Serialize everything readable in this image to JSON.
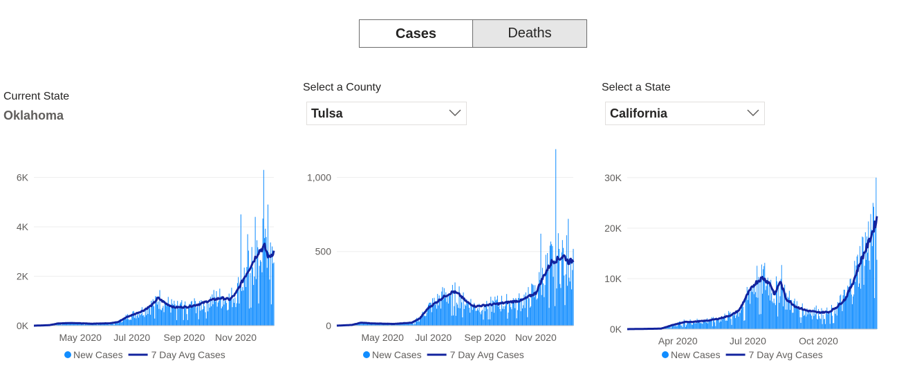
{
  "toggle": {
    "cases_label": "Cases",
    "deaths_label": "Deaths",
    "active": "Cases"
  },
  "left": {
    "label": "Current State",
    "value": "Oklahoma"
  },
  "middle": {
    "label": "Select a County",
    "selected": "Tulsa"
  },
  "right": {
    "label": "Select a State",
    "selected": "California"
  },
  "colors": {
    "bars": "#118dff",
    "line": "#12239e",
    "grid": "#eeeeee"
  },
  "icons": {
    "dropdown": "chevron-down-icon"
  },
  "chart_data": [
    {
      "type": "bar",
      "name": "Oklahoma",
      "ylim": [
        0,
        6600
      ],
      "yticks": [
        0,
        2000,
        4000,
        6000
      ],
      "ytick_labels": [
        "0K",
        "2K",
        "4K",
        "6K"
      ],
      "x_start": "2020-03-07",
      "x_end": "2020-12-16",
      "xticks": [
        "2020-05-01",
        "2020-07-01",
        "2020-09-01",
        "2020-11-01"
      ],
      "xtick_labels": [
        "May 2020",
        "Jul 2020",
        "Sep 2020",
        "Nov 2020"
      ],
      "avg_points": [
        [
          "2020-03-07",
          0
        ],
        [
          "2020-03-25",
          20
        ],
        [
          "2020-04-05",
          90
        ],
        [
          "2020-04-20",
          110
        ],
        [
          "2020-05-15",
          80
        ],
        [
          "2020-06-05",
          100
        ],
        [
          "2020-06-15",
          150
        ],
        [
          "2020-06-25",
          350
        ],
        [
          "2020-07-05",
          480
        ],
        [
          "2020-07-15",
          620
        ],
        [
          "2020-07-25",
          840
        ],
        [
          "2020-08-01",
          1120
        ],
        [
          "2020-08-10",
          900
        ],
        [
          "2020-08-20",
          740
        ],
        [
          "2020-09-05",
          760
        ],
        [
          "2020-09-20",
          880
        ],
        [
          "2020-10-01",
          1020
        ],
        [
          "2020-10-15",
          1120
        ],
        [
          "2020-10-25",
          1060
        ],
        [
          "2020-11-01",
          1300
        ],
        [
          "2020-11-10",
          1880
        ],
        [
          "2020-11-20",
          2500
        ],
        [
          "2020-11-28",
          3000
        ],
        [
          "2020-12-05",
          3200
        ],
        [
          "2020-12-10",
          2750
        ],
        [
          "2020-12-16",
          3000
        ]
      ],
      "spikes": [
        [
          "2020-11-07",
          4500
        ],
        [
          "2020-11-15",
          3700
        ],
        [
          "2020-11-24",
          4400
        ],
        [
          "2020-12-04",
          6300
        ],
        [
          "2020-12-09",
          4900
        ]
      ],
      "legend": [
        "New Cases",
        "7 Day Avg Cases"
      ]
    },
    {
      "type": "bar",
      "name": "Tulsa",
      "ylim": [
        0,
        1100
      ],
      "yticks": [
        0,
        500,
        1000
      ],
      "ytick_labels": [
        "0",
        "500",
        "1,000"
      ],
      "x_start": "2020-03-07",
      "x_end": "2020-12-16",
      "xticks": [
        "2020-05-01",
        "2020-07-01",
        "2020-09-01",
        "2020-11-01"
      ],
      "xtick_labels": [
        "May 2020",
        "Jul 2020",
        "Sep 2020",
        "Nov 2020"
      ],
      "avg_points": [
        [
          "2020-03-07",
          0
        ],
        [
          "2020-03-25",
          5
        ],
        [
          "2020-04-05",
          20
        ],
        [
          "2020-04-20",
          15
        ],
        [
          "2020-05-15",
          12
        ],
        [
          "2020-06-05",
          20
        ],
        [
          "2020-06-15",
          50
        ],
        [
          "2020-06-25",
          120
        ],
        [
          "2020-07-05",
          160
        ],
        [
          "2020-07-15",
          200
        ],
        [
          "2020-07-25",
          230
        ],
        [
          "2020-08-01",
          210
        ],
        [
          "2020-08-10",
          160
        ],
        [
          "2020-08-20",
          130
        ],
        [
          "2020-09-05",
          140
        ],
        [
          "2020-09-20",
          150
        ],
        [
          "2020-10-01",
          160
        ],
        [
          "2020-10-15",
          170
        ],
        [
          "2020-10-25",
          200
        ],
        [
          "2020-11-01",
          220
        ],
        [
          "2020-11-10",
          330
        ],
        [
          "2020-11-20",
          430
        ],
        [
          "2020-11-28",
          450
        ],
        [
          "2020-12-05",
          470
        ],
        [
          "2020-12-10",
          430
        ],
        [
          "2020-12-16",
          440
        ]
      ],
      "spikes": [
        [
          "2020-11-07",
          620
        ],
        [
          "2020-11-25",
          1190
        ],
        [
          "2020-12-10",
          720
        ]
      ],
      "legend": [
        "New Cases",
        "7 Day Avg Cases"
      ]
    },
    {
      "type": "bar",
      "name": "California",
      "ylim": [
        0,
        33000
      ],
      "yticks": [
        0,
        10000,
        20000,
        30000
      ],
      "ytick_labels": [
        "0K",
        "10K",
        "20K",
        "30K"
      ],
      "x_start": "2020-01-26",
      "x_end": "2020-12-16",
      "xticks": [
        "2020-04-01",
        "2020-07-01",
        "2020-10-01"
      ],
      "xtick_labels": [
        "Apr 2020",
        "Jul 2020",
        "Oct 2020"
      ],
      "avg_points": [
        [
          "2020-01-26",
          0
        ],
        [
          "2020-03-10",
          100
        ],
        [
          "2020-03-25",
          800
        ],
        [
          "2020-04-10",
          1400
        ],
        [
          "2020-04-25",
          1500
        ],
        [
          "2020-05-10",
          1700
        ],
        [
          "2020-05-25",
          2100
        ],
        [
          "2020-06-10",
          2800
        ],
        [
          "2020-06-20",
          3800
        ],
        [
          "2020-07-01",
          7000
        ],
        [
          "2020-07-10",
          9000
        ],
        [
          "2020-07-20",
          10200
        ],
        [
          "2020-07-30",
          9000
        ],
        [
          "2020-08-05",
          6800
        ],
        [
          "2020-08-12",
          9500
        ],
        [
          "2020-08-20",
          6000
        ],
        [
          "2020-09-01",
          4500
        ],
        [
          "2020-09-15",
          3700
        ],
        [
          "2020-10-01",
          3300
        ],
        [
          "2020-10-15",
          3400
        ],
        [
          "2020-10-25",
          4400
        ],
        [
          "2020-11-05",
          6000
        ],
        [
          "2020-11-15",
          9300
        ],
        [
          "2020-11-25",
          13500
        ],
        [
          "2020-12-05",
          17000
        ],
        [
          "2020-12-12",
          20000
        ],
        [
          "2020-12-16",
          22000
        ]
      ],
      "spikes": [
        [
          "2020-07-19",
          12800
        ],
        [
          "2020-08-14",
          12700
        ],
        [
          "2020-12-11",
          25000
        ],
        [
          "2020-12-15",
          30000
        ]
      ],
      "legend": [
        "New Cases",
        "7 Day Avg Cases"
      ]
    }
  ]
}
